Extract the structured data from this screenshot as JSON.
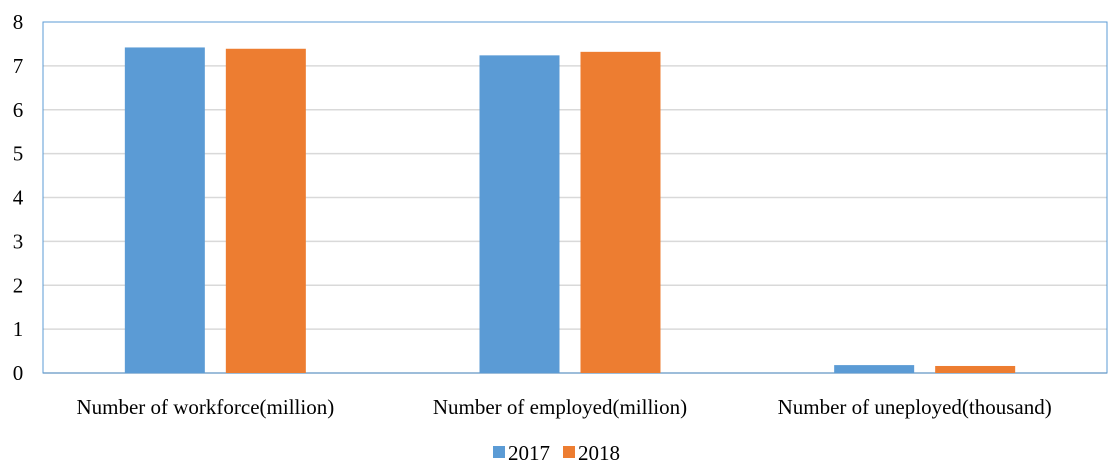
{
  "chart_data": {
    "type": "bar",
    "title": "",
    "xlabel": "",
    "ylabel": "",
    "categories": [
      "Number of workforce(million)",
      "Number of employed(million)",
      "Number of uneployed(thousand)"
    ],
    "series": [
      {
        "name": "2017",
        "color": "#5B9BD5",
        "values": [
          7.42,
          7.24,
          0.18
        ]
      },
      {
        "name": "2018",
        "color": "#ED7D31",
        "values": [
          7.39,
          7.32,
          0.16
        ]
      }
    ],
    "ylim": [
      0,
      8
    ],
    "yticks": [
      "0",
      "1",
      "2",
      "3",
      "4",
      "5",
      "6",
      "7",
      "8"
    ],
    "grid": true,
    "legend_position": "bottom-center",
    "colors": {
      "gridline": "#D9D9D9",
      "plot_border": "#5B9BD5",
      "axis": "#BFBFBF"
    }
  }
}
